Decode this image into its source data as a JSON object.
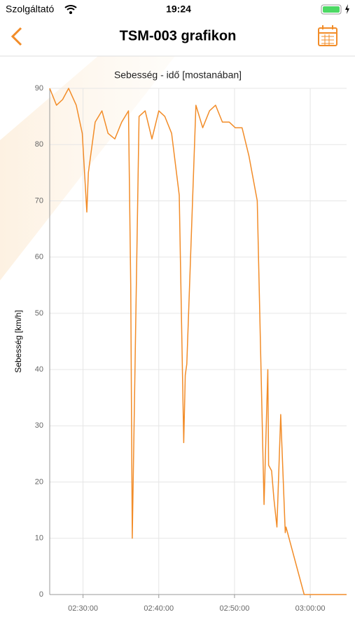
{
  "status_bar": {
    "carrier": "Szolgáltató",
    "time": "19:24"
  },
  "nav": {
    "title": "TSM-003 grafikon"
  },
  "chart_data": {
    "type": "line",
    "title": "Sebesség - idő [mostanában]",
    "y_label": "Sebesség [km/h]",
    "color": "#f28c28",
    "grid": true,
    "x": [
      145.6,
      146.5,
      147.3,
      148.1,
      149.1,
      149.9,
      150.5,
      150.7,
      151.6,
      152.5,
      153.3,
      154.2,
      155.1,
      156.0,
      156.3,
      156.5,
      157.4,
      158.2,
      159.1,
      160.0,
      160.8,
      161.7,
      162.7,
      163.3,
      163.5,
      163.7,
      164.9,
      165.8,
      166.7,
      167.5,
      168.4,
      169.3,
      170.1,
      171.0,
      171.9,
      173.0,
      173.9,
      174.4,
      174.5,
      174.9,
      175.2,
      175.6,
      176.1,
      176.7,
      176.8,
      179.2,
      180.2,
      184.8
    ],
    "values": [
      90,
      87,
      88,
      90,
      87,
      82,
      68,
      75,
      84,
      86,
      82,
      81,
      84,
      86,
      55,
      10,
      85,
      86,
      81,
      86,
      85,
      82,
      71,
      27,
      39,
      41,
      87,
      83,
      86,
      87,
      84,
      84,
      83,
      83,
      78,
      70,
      16,
      40,
      23,
      22,
      17,
      12,
      32,
      11,
      12,
      0,
      0,
      0
    ],
    "xlim": [
      145.6,
      184.8
    ],
    "xticks": [
      {
        "value": 150,
        "label": "02:30:00"
      },
      {
        "value": 160,
        "label": "02:40:00"
      },
      {
        "value": 170,
        "label": "02:50:00"
      },
      {
        "value": 180,
        "label": "03:00:00"
      }
    ],
    "ylim": [
      0,
      90
    ],
    "yticks": [
      0,
      10,
      20,
      30,
      40,
      50,
      60,
      70,
      80,
      90
    ]
  }
}
